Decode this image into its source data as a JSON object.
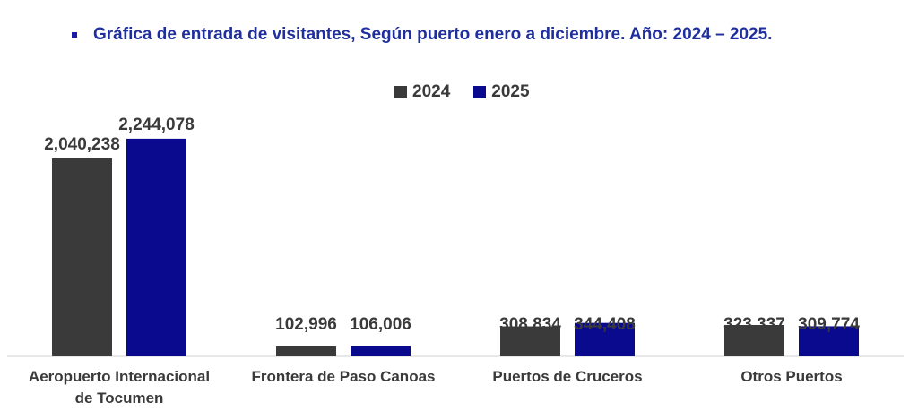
{
  "header": {
    "title": "Gráfica de entrada de visitantes, Según puerto enero a diciembre. Año: 2024 – 2025."
  },
  "colors": {
    "series_2024": "#3a3a3a",
    "series_2025": "#0a0a8f",
    "title": "#1f2f9e"
  },
  "chart_data": {
    "type": "bar",
    "title": "Gráfica de entrada de visitantes, Según puerto enero a diciembre. Año: 2024 – 2025.",
    "categories": [
      [
        "Aeropuerto Internacional",
        "de Tocumen"
      ],
      [
        "Frontera de Paso Canoas"
      ],
      [
        "Puertos de Cruceros"
      ],
      [
        "Otros Puertos"
      ]
    ],
    "series": [
      {
        "name": "2024",
        "values": [
          2040238,
          102996,
          308834,
          323337
        ],
        "labels": [
          "2,040,238",
          "102,996",
          "308,834",
          "323,337"
        ]
      },
      {
        "name": "2025",
        "values": [
          2244078,
          106006,
          344408,
          309774
        ],
        "labels": [
          "2,244,078",
          "106,006",
          "344,408",
          "309,774"
        ]
      }
    ],
    "legend": "top-center",
    "xlabel": "",
    "ylabel": "",
    "ylim": [
      0,
      2400000
    ],
    "grid": false
  }
}
